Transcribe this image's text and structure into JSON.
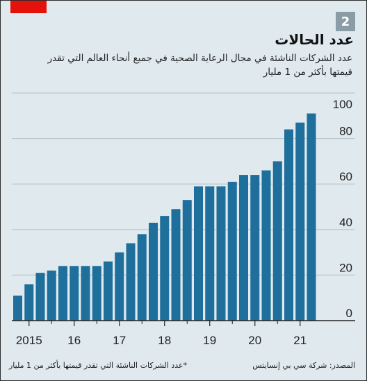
{
  "badge": "2",
  "title": "عدد الحالات",
  "subtitle": "عدد الشركات الناشئة في مجال الرعاية الصحية في جميع أنحاء العالم  التي تقدر قيمتها بأكثر من 1 مليار",
  "footer": {
    "source": "المصدر: شركة سي بي إنسايتس",
    "note": "*عدد الشركات الناشئة التي تقدر قيمتها بأكثر من 1 مليار"
  },
  "chart_data": {
    "type": "bar",
    "values": [
      11,
      16,
      21,
      22,
      24,
      24,
      24,
      24,
      26,
      30,
      34,
      38,
      43,
      46,
      49,
      53,
      59,
      59,
      59,
      61,
      64,
      64,
      66,
      70,
      84,
      87,
      91
    ],
    "ylim": [
      0,
      100
    ],
    "yticks": [
      0,
      20,
      40,
      60,
      80,
      100
    ],
    "xtick_labels": [
      "2015",
      "16",
      "17",
      "18",
      "19",
      "20",
      "21"
    ],
    "xtick_label_bar_index": [
      1,
      5,
      9,
      13,
      17,
      21,
      25
    ],
    "grid": true,
    "bar_color": "#1f6f9c"
  }
}
